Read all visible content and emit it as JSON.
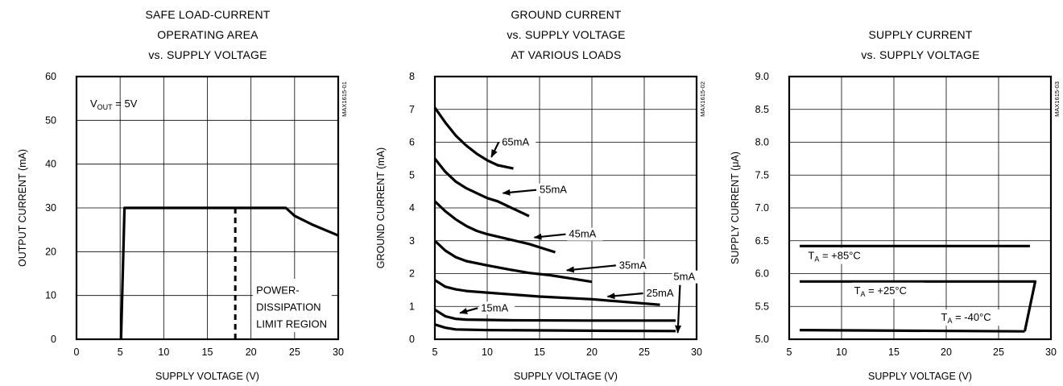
{
  "chart_data": [
    {
      "type": "line",
      "title_lines": [
        "SAFE LOAD-CURRENT",
        "OPERATING AREA",
        "vs. SUPPLY VOLTAGE"
      ],
      "xlabel": "SUPPLY VOLTAGE (V)",
      "ylabel": "OUTPUT CURRENT (mA)",
      "xlim": [
        0,
        30
      ],
      "ylim": [
        0,
        60
      ],
      "xticks": [
        "0",
        "5",
        "10",
        "15",
        "20",
        "25",
        "30"
      ],
      "yticks": [
        "0",
        "10",
        "20",
        "30",
        "40",
        "50",
        "60"
      ],
      "figure_code": "MAX1615-01",
      "annotation_vout": {
        "main": "V",
        "sub": "OUT",
        "rest": " = 5V"
      },
      "region_label_lines": [
        "POWER-",
        "DISSIPATION",
        "LIMIT REGION"
      ],
      "series": [
        {
          "values": [
            [
              5.1,
              0
            ],
            [
              5.5,
              30
            ],
            [
              24,
              30
            ],
            [
              25,
              28.2
            ],
            [
              27,
              26.2
            ],
            [
              30,
              23.7
            ]
          ]
        }
      ],
      "boundary_x": 18.2,
      "boundary_range": [
        0,
        30
      ]
    },
    {
      "type": "line",
      "title_lines": [
        "GROUND CURRENT",
        "vs. SUPPLY VOLTAGE",
        "AT VARIOUS LOADS"
      ],
      "xlabel": "SUPPLY VOLTAGE (V)",
      "ylabel": "GROUND CURRENT (mA)",
      "xlim": [
        5,
        30
      ],
      "ylim": [
        0,
        8
      ],
      "xticks": [
        "5",
        "10",
        "15",
        "20",
        "25",
        "30"
      ],
      "yticks": [
        "0",
        "1",
        "2",
        "3",
        "4",
        "5",
        "6",
        "7",
        "8"
      ],
      "figure_code": "MAX1615-02",
      "series": [
        {
          "name": "65mA",
          "label_at": [
            11.4,
            5.9
          ],
          "arrow_to": [
            10.4,
            5.55
          ],
          "values": [
            [
              5,
              7.05
            ],
            [
              6,
              6.6
            ],
            [
              7,
              6.2
            ],
            [
              8,
              5.9
            ],
            [
              9,
              5.65
            ],
            [
              10,
              5.45
            ],
            [
              11,
              5.3
            ],
            [
              12.5,
              5.2
            ]
          ]
        },
        {
          "name": "55mA",
          "label_at": [
            15,
            4.45
          ],
          "arrow_to": [
            11.5,
            4.45
          ],
          "values": [
            [
              5,
              5.5
            ],
            [
              6,
              5.1
            ],
            [
              7,
              4.8
            ],
            [
              8,
              4.6
            ],
            [
              9,
              4.45
            ],
            [
              10,
              4.3
            ],
            [
              11,
              4.2
            ],
            [
              12,
              4.05
            ],
            [
              13,
              3.9
            ],
            [
              14,
              3.75
            ]
          ]
        },
        {
          "name": "45mA",
          "label_at": [
            17.8,
            3.1
          ],
          "arrow_to": [
            14.5,
            3.1
          ],
          "values": [
            [
              5,
              4.2
            ],
            [
              6,
              3.9
            ],
            [
              7,
              3.65
            ],
            [
              8,
              3.45
            ],
            [
              9,
              3.3
            ],
            [
              10,
              3.2
            ],
            [
              12,
              3.05
            ],
            [
              14,
              2.9
            ],
            [
              16.5,
              2.65
            ]
          ]
        },
        {
          "name": "35mA",
          "label_at": [
            22.6,
            2.15
          ],
          "arrow_to": [
            17.6,
            2.1
          ],
          "values": [
            [
              5,
              3.0
            ],
            [
              6,
              2.7
            ],
            [
              7,
              2.5
            ],
            [
              8,
              2.38
            ],
            [
              10,
              2.25
            ],
            [
              12,
              2.13
            ],
            [
              14,
              2.02
            ],
            [
              16,
              1.95
            ],
            [
              18,
              1.85
            ],
            [
              20,
              1.75
            ]
          ]
        },
        {
          "name": "25mA",
          "label_at": [
            25.2,
            1.3
          ],
          "arrow_to": [
            21.5,
            1.3
          ],
          "values": [
            [
              5,
              1.8
            ],
            [
              6,
              1.6
            ],
            [
              7,
              1.52
            ],
            [
              8,
              1.47
            ],
            [
              10,
              1.42
            ],
            [
              15,
              1.3
            ],
            [
              20,
              1.22
            ],
            [
              26.5,
              1.05
            ]
          ]
        },
        {
          "name": "15mA",
          "label_at": [
            9.4,
            0.85
          ],
          "arrow_to": [
            7.4,
            0.8
          ],
          "values": [
            [
              5,
              0.9
            ],
            [
              6,
              0.7
            ],
            [
              7,
              0.62
            ],
            [
              8,
              0.6
            ],
            [
              12,
              0.58
            ],
            [
              20,
              0.57
            ],
            [
              28,
              0.57
            ]
          ]
        },
        {
          "name": "5mA",
          "label_at": [
            27.8,
            1.8
          ],
          "arrow_to": [
            28.2,
            0.2
          ],
          "values": [
            [
              5,
              0.45
            ],
            [
              6,
              0.35
            ],
            [
              7,
              0.3
            ],
            [
              10,
              0.28
            ],
            [
              20,
              0.26
            ],
            [
              28,
              0.25
            ]
          ]
        }
      ]
    },
    {
      "type": "line",
      "title_lines": [
        "SUPPLY CURRENT",
        "vs. SUPPLY VOLTAGE"
      ],
      "xlabel": "SUPPLY VOLTAGE (V)",
      "ylabel": "SUPPLY CURRENT (μA)",
      "xlim": [
        5,
        30
      ],
      "ylim": [
        5.0,
        9.0
      ],
      "xticks": [
        "5",
        "10",
        "15",
        "20",
        "25",
        "30"
      ],
      "yticks": [
        "5.0",
        "5.5",
        "6.0",
        "6.5",
        "7.0",
        "7.5",
        "8.0",
        "8.5",
        "9.0"
      ],
      "figure_code": "MAX1615-03",
      "series": [
        {
          "name": "T_A = +85°C",
          "label": {
            "main": "T",
            "sub": "A",
            "rest": " = +85°C"
          },
          "label_at": [
            6.8,
            6.22
          ],
          "values": [
            [
              6,
              6.42
            ],
            [
              28,
              6.42
            ]
          ]
        },
        {
          "name": "T_A = +25°C",
          "label": {
            "main": "T",
            "sub": "A",
            "rest": " = +25°C"
          },
          "label_at": [
            11.2,
            5.69
          ],
          "values": [
            [
              6,
              5.88
            ],
            [
              28.5,
              5.88
            ],
            [
              27.5,
              5.12
            ]
          ]
        },
        {
          "name": "T_A = -40°C",
          "label": {
            "main": "T",
            "sub": "A",
            "rest": " = -40°C"
          },
          "label_at": [
            19.5,
            5.28
          ],
          "values": [
            [
              6,
              5.14
            ],
            [
              27.5,
              5.12
            ]
          ]
        }
      ]
    }
  ]
}
